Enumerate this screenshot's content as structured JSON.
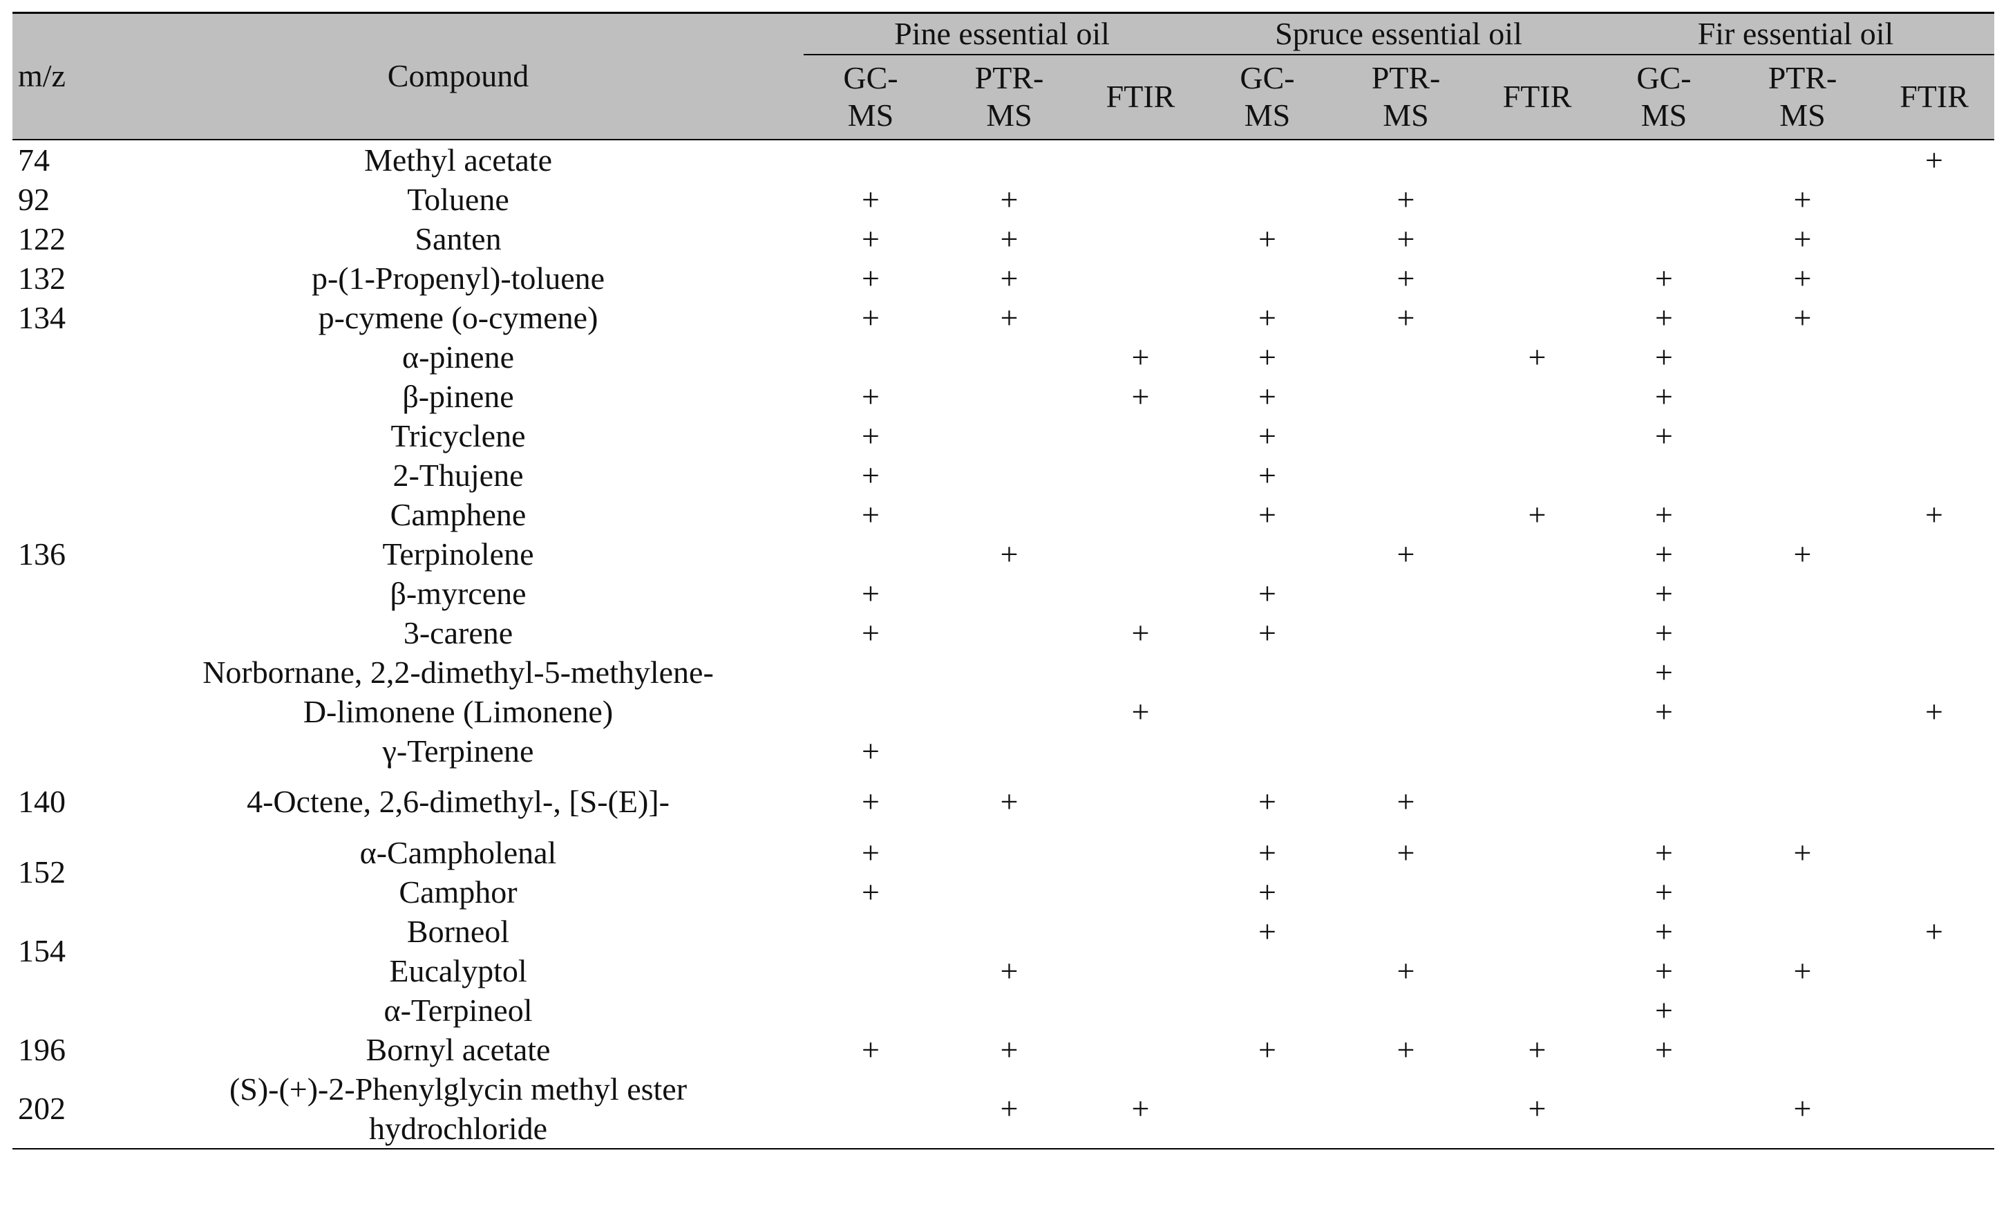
{
  "table": {
    "headers": {
      "mz": "m/z",
      "compound": "Compound",
      "groups": [
        {
          "name": "Pine essential oil",
          "methods": [
            "GC-MS",
            "PTR-MS",
            "FTIR"
          ]
        },
        {
          "name": "Spruce essential oil",
          "methods": [
            "GC-MS",
            "PTR-MS",
            "FTIR"
          ]
        },
        {
          "name": "Fir essential oil",
          "methods": [
            "GC-MS",
            "PTR-MS",
            "FTIR"
          ]
        }
      ]
    },
    "groups": [
      {
        "mz": 74,
        "rows": [
          {
            "compound": "Methyl acetate",
            "marks": [
              null,
              null,
              null,
              null,
              null,
              null,
              null,
              null,
              "+"
            ]
          }
        ]
      },
      {
        "mz": 92,
        "rows": [
          {
            "compound": "Toluene",
            "marks": [
              "+",
              "+",
              null,
              null,
              "+",
              null,
              null,
              "+",
              null
            ]
          }
        ]
      },
      {
        "mz": 122,
        "rows": [
          {
            "compound": "Santen",
            "marks": [
              "+",
              "+",
              null,
              "+",
              "+",
              null,
              null,
              "+",
              null
            ]
          }
        ]
      },
      {
        "mz": 132,
        "rows": [
          {
            "compound": "p-(1-Propenyl)-toluene",
            "marks": [
              "+",
              "+",
              null,
              null,
              "+",
              null,
              "+",
              "+",
              null
            ]
          }
        ]
      },
      {
        "mz": 134,
        "rows": [
          {
            "compound": "p-cymene (o-cymene)",
            "marks": [
              "+",
              "+",
              null,
              "+",
              "+",
              null,
              "+",
              "+",
              null
            ]
          }
        ]
      },
      {
        "mz": 136,
        "rows": [
          {
            "compound": "α-pinene",
            "marks": [
              null,
              null,
              "+",
              "+",
              null,
              "+",
              "+",
              null,
              null
            ]
          },
          {
            "compound": "β-pinene",
            "marks": [
              "+",
              null,
              "+",
              "+",
              null,
              null,
              "+",
              null,
              null
            ]
          },
          {
            "compound": "Tricyclene",
            "marks": [
              "+",
              null,
              null,
              "+",
              null,
              null,
              "+",
              null,
              null
            ]
          },
          {
            "compound": "2-Thujene",
            "marks": [
              "+",
              null,
              null,
              "+",
              null,
              null,
              null,
              null,
              null
            ]
          },
          {
            "compound": "Camphene",
            "marks": [
              "+",
              null,
              null,
              "+",
              null,
              "+",
              "+",
              null,
              "+"
            ]
          },
          {
            "compound": "Terpinolene",
            "marks": [
              null,
              "+",
              null,
              null,
              "+",
              null,
              "+",
              "+",
              null
            ]
          },
          {
            "compound": "β-myrcene",
            "marks": [
              "+",
              null,
              null,
              "+",
              null,
              null,
              "+",
              null,
              null
            ]
          },
          {
            "compound": "3-carene",
            "marks": [
              "+",
              null,
              "+",
              "+",
              null,
              null,
              "+",
              null,
              null
            ]
          },
          {
            "compound": "Norbornane, 2,2-dimethyl-5-methylene-",
            "marks": [
              null,
              null,
              null,
              null,
              null,
              null,
              "+",
              null,
              null
            ]
          },
          {
            "compound": "D-limonene (Limonene)",
            "marks": [
              null,
              null,
              "+",
              null,
              null,
              null,
              "+",
              null,
              "+"
            ]
          },
          {
            "compound": "γ-Terpinene",
            "marks": [
              "+",
              null,
              null,
              null,
              null,
              null,
              null,
              null,
              null
            ]
          }
        ]
      },
      {
        "mz": 140,
        "rows": [
          {
            "compound": "4-Octene, 2,6-dimethyl-, [S-(E)]-",
            "marks": [
              "+",
              "+",
              null,
              "+",
              "+",
              null,
              null,
              null,
              null
            ]
          }
        ]
      },
      {
        "mz": 152,
        "rows": [
          {
            "compound": "α-Campholenal",
            "marks": [
              "+",
              null,
              null,
              "+",
              "+",
              null,
              "+",
              "+",
              null
            ]
          },
          {
            "compound": "Camphor",
            "marks": [
              "+",
              null,
              null,
              "+",
              null,
              null,
              "+",
              null,
              null
            ]
          }
        ]
      },
      {
        "mz": 154,
        "rows": [
          {
            "compound": "Borneol",
            "marks": [
              null,
              null,
              null,
              "+",
              null,
              null,
              "+",
              null,
              "+"
            ]
          },
          {
            "compound": "Eucalyptol",
            "marks": [
              null,
              "+",
              null,
              null,
              "+",
              null,
              "+",
              "+",
              null
            ]
          }
        ]
      },
      {
        "mz": null,
        "rows": [
          {
            "compound": "α-Terpineol",
            "marks": [
              null,
              null,
              null,
              null,
              null,
              null,
              "+",
              null,
              null
            ]
          }
        ]
      },
      {
        "mz": 196,
        "rows": [
          {
            "compound": "Bornyl acetate",
            "marks": [
              "+",
              "+",
              null,
              "+",
              "+",
              "+",
              "+",
              null,
              null
            ]
          }
        ]
      },
      {
        "mz": 202,
        "rows": [
          {
            "compound": "(S)-(+)-2-Phenylglycin methyl ester hydrochloride",
            "marks": [
              null,
              "+",
              "+",
              null,
              null,
              "+",
              null,
              "+",
              null
            ]
          }
        ]
      }
    ]
  }
}
